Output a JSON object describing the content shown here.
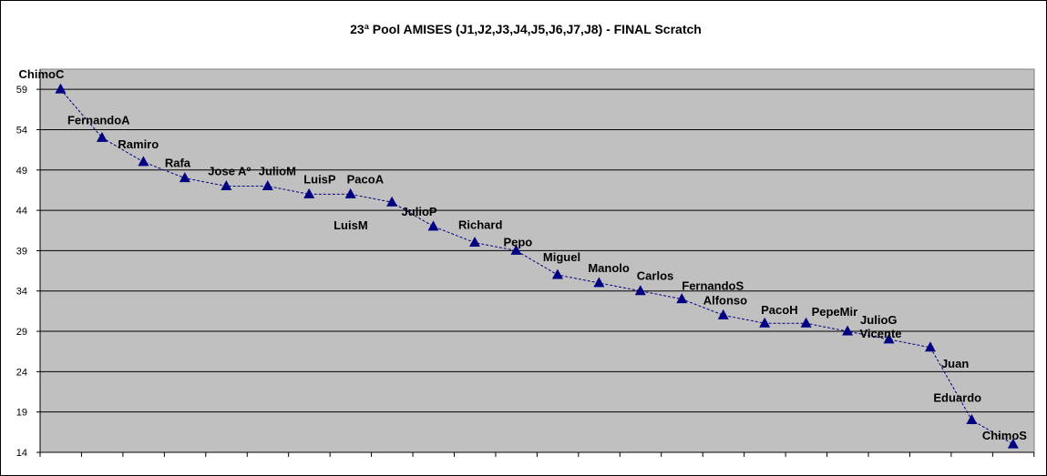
{
  "chart_data": {
    "type": "line",
    "title": "23ª Pool AMISES (J1,J2,J3,J4,J5,J6,J7,J8)  - FINAL Scratch",
    "xlabel": "",
    "ylabel": "",
    "ylim": [
      14,
      61.5
    ],
    "yticks": [
      14,
      19,
      24,
      29,
      34,
      39,
      44,
      49,
      54,
      59
    ],
    "grid": true,
    "legend": "none",
    "colors": {
      "plot_background": "#c0c0c0",
      "gridline": "#000000",
      "series_line": "#000080",
      "marker": "#000080"
    },
    "marker": "triangle",
    "line_style": "dashed",
    "categories": [
      "ChimoC",
      "FernandoA",
      "Ramiro",
      "Rafa",
      "Jose Aº",
      "JulioM",
      "LuisP",
      "PacoA",
      "LuisM",
      "JulioP",
      "Richard",
      "Pepo",
      "Miguel",
      "Manolo",
      "Carlos",
      "FernandoS",
      "Alfonso",
      "PacoH",
      "PepeMir",
      "JulioG",
      "Vicente",
      "Juan",
      "Eduardo",
      "ChimoS"
    ],
    "series": [
      {
        "values": [
          59,
          53,
          50,
          48,
          47,
          47,
          46,
          46,
          45,
          42,
          40,
          39,
          36,
          35,
          34,
          33,
          31,
          30,
          30,
          29,
          28,
          27,
          18,
          15
        ]
      }
    ]
  }
}
